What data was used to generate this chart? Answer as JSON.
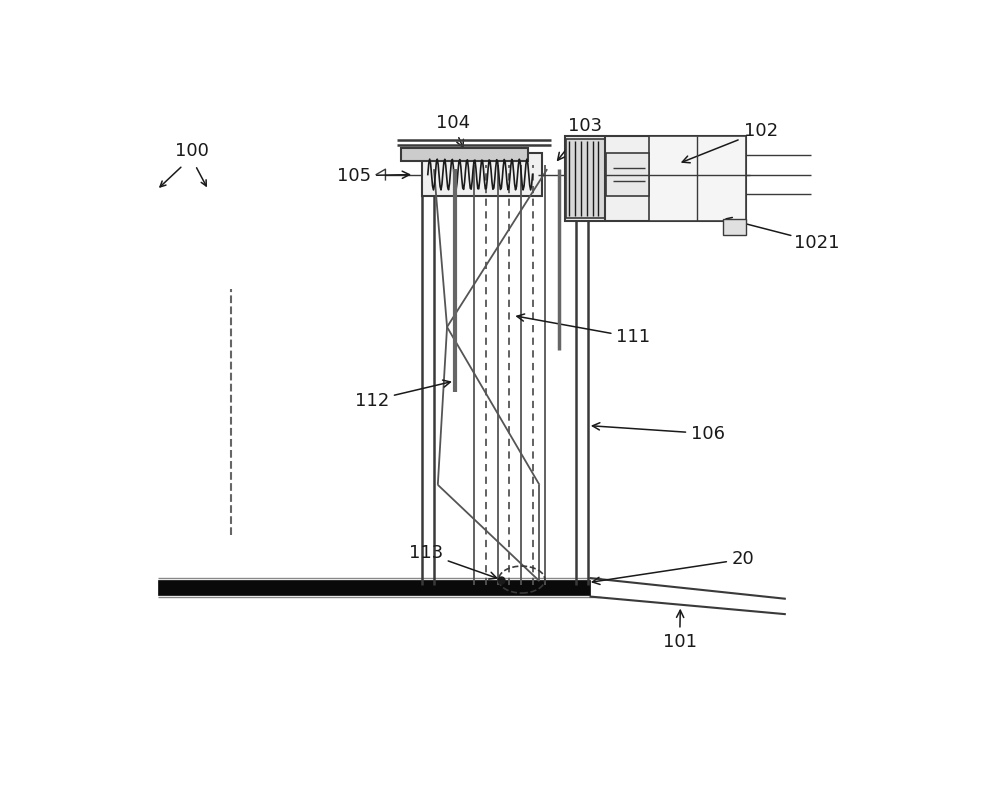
{
  "bg_color": "#ffffff",
  "lc": "#3a3a3a",
  "dc": "#1a1a1a",
  "figsize": [
    10.0,
    8.0
  ],
  "dpi": 100
}
